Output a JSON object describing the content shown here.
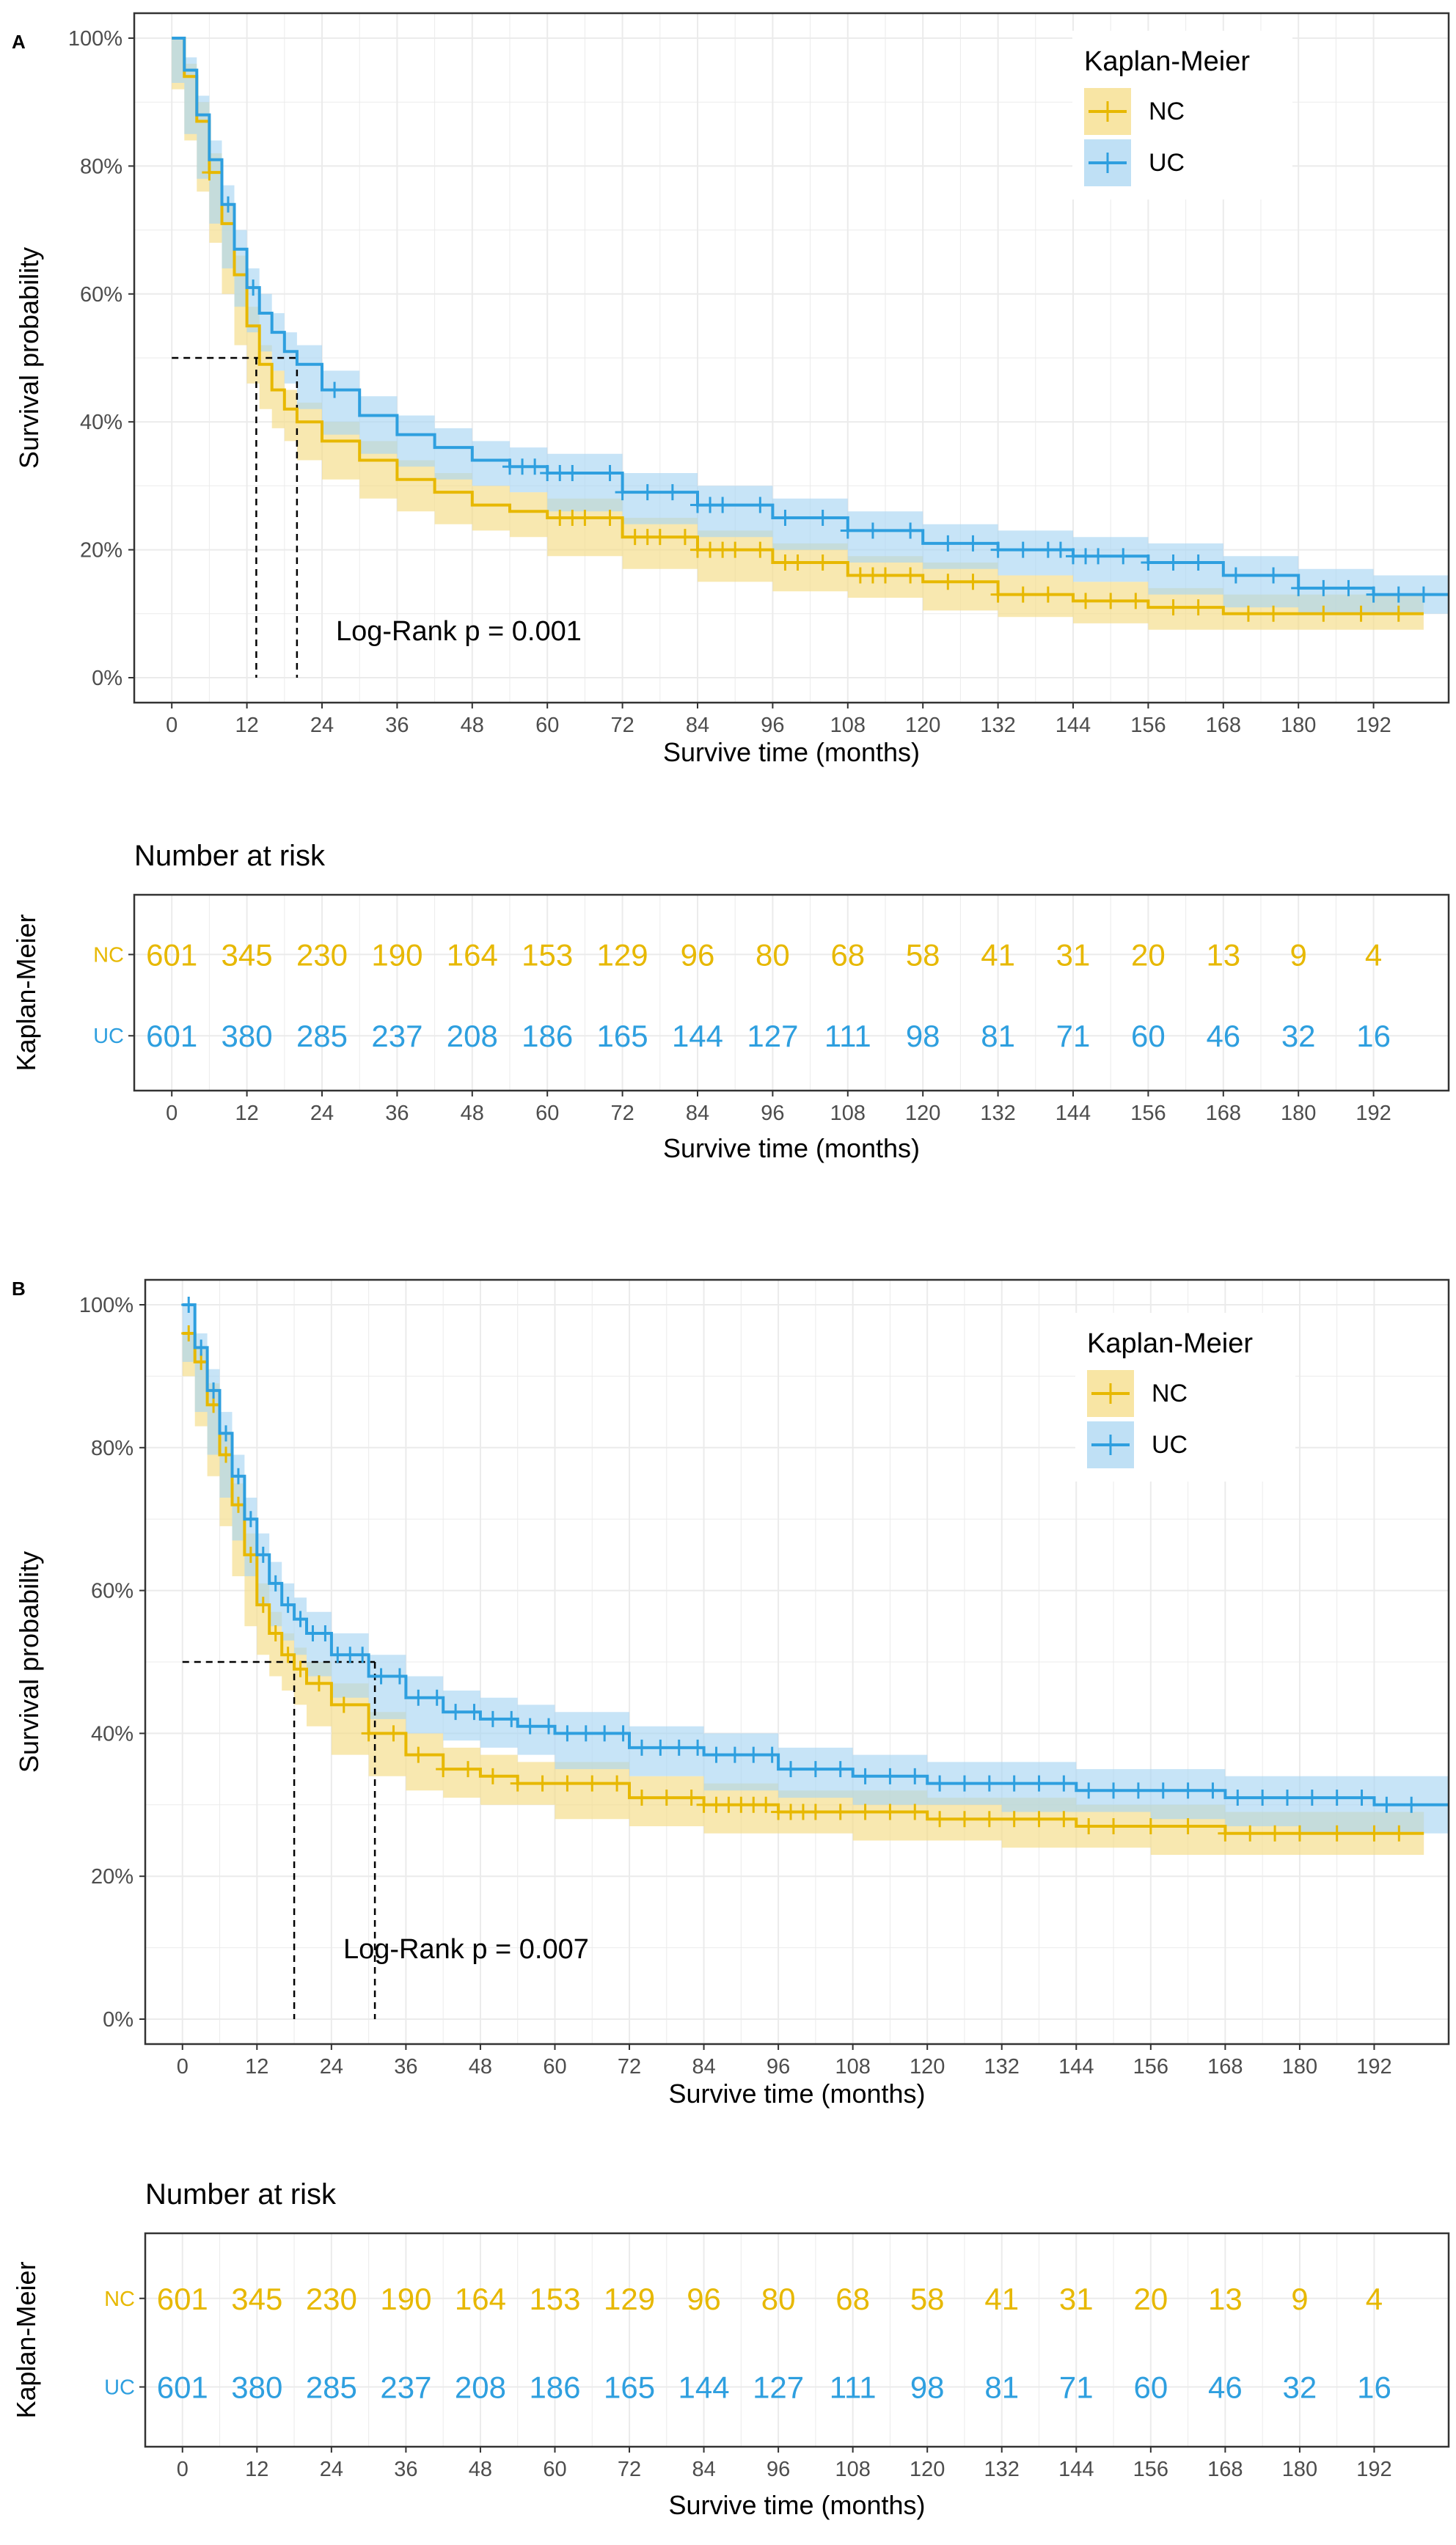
{
  "panels": [
    {
      "label": "A",
      "logrank": "Log-Rank p = 0.001",
      "legend": {
        "title": "Kaplan-Meier",
        "items": [
          "NC",
          "UC"
        ]
      },
      "risk": {
        "title": "Number at risk",
        "ylabel": "Kaplan-Meier",
        "xlabel": "Survive time (months)"
      }
    },
    {
      "label": "B",
      "logrank": "Log-Rank p = 0.007",
      "legend": {
        "title": "Kaplan-Meier",
        "items": [
          "NC",
          "UC"
        ]
      },
      "risk": {
        "title": "Number at risk",
        "ylabel": "Kaplan-Meier",
        "xlabel": "Survive time (months)"
      }
    }
  ],
  "colors": {
    "NC": "#E7B800",
    "UC": "#2E9FDF",
    "NC_band": "#F5DC85",
    "UC_band": "#A9D6F2",
    "grid": "#EBEBEB"
  },
  "chart_data": [
    {
      "type": "line",
      "panel": "A",
      "xlabel": "Survive time (months)",
      "ylabel": "Survival probability",
      "xlim": [
        -6,
        204
      ],
      "ylim": [
        0,
        1
      ],
      "xticks": [
        0,
        12,
        24,
        36,
        48,
        60,
        72,
        84,
        96,
        108,
        120,
        132,
        144,
        156,
        168,
        180,
        192
      ],
      "yticks": [
        0,
        0.2,
        0.4,
        0.6,
        0.8,
        1.0
      ],
      "ytick_labels": [
        "0%",
        "20%",
        "40%",
        "60%",
        "80%",
        "100%"
      ],
      "grid": true,
      "legend_position": "top-right",
      "median_lines": [
        13.5,
        20
      ],
      "series": [
        {
          "name": "NC",
          "x": [
            0,
            2,
            4,
            6,
            8,
            10,
            12,
            14,
            16,
            18,
            20,
            24,
            30,
            36,
            42,
            48,
            54,
            60,
            72,
            84,
            96,
            108,
            120,
            132,
            144,
            156,
            168,
            180,
            192,
            200
          ],
          "y": [
            1.0,
            0.94,
            0.87,
            0.79,
            0.71,
            0.63,
            0.55,
            0.49,
            0.45,
            0.42,
            0.4,
            0.37,
            0.34,
            0.31,
            0.29,
            0.27,
            0.26,
            0.25,
            0.22,
            0.2,
            0.18,
            0.16,
            0.15,
            0.13,
            0.12,
            0.11,
            0.1,
            0.1,
            0.1,
            0.1
          ],
          "lower": [
            1.0,
            0.92,
            0.84,
            0.76,
            0.68,
            0.6,
            0.52,
            0.46,
            0.42,
            0.39,
            0.37,
            0.34,
            0.31,
            0.28,
            0.26,
            0.24,
            0.23,
            0.22,
            0.19,
            0.17,
            0.15,
            0.135,
            0.125,
            0.105,
            0.095,
            0.085,
            0.075,
            0.075,
            0.075,
            0.075
          ],
          "upper": [
            1.0,
            0.96,
            0.9,
            0.82,
            0.74,
            0.66,
            0.58,
            0.52,
            0.48,
            0.45,
            0.43,
            0.4,
            0.37,
            0.34,
            0.32,
            0.3,
            0.29,
            0.28,
            0.25,
            0.23,
            0.21,
            0.19,
            0.18,
            0.16,
            0.15,
            0.14,
            0.13,
            0.13,
            0.13,
            0.13
          ],
          "censor_x": [
            6,
            62,
            64,
            66,
            70,
            74,
            76,
            78,
            82,
            84,
            86,
            88,
            90,
            94,
            98,
            100,
            104,
            110,
            112,
            114,
            118,
            124,
            128,
            132,
            136,
            140,
            146,
            150,
            154,
            160,
            164,
            172,
            176,
            184,
            190,
            196
          ]
        },
        {
          "name": "UC",
          "x": [
            0,
            2,
            4,
            6,
            8,
            10,
            12,
            14,
            16,
            18,
            20,
            24,
            30,
            36,
            42,
            48,
            54,
            60,
            72,
            84,
            96,
            108,
            120,
            132,
            144,
            156,
            168,
            180,
            192,
            204
          ],
          "y": [
            1.0,
            0.95,
            0.88,
            0.81,
            0.74,
            0.67,
            0.61,
            0.57,
            0.54,
            0.51,
            0.49,
            0.45,
            0.41,
            0.38,
            0.36,
            0.34,
            0.33,
            0.32,
            0.29,
            0.27,
            0.25,
            0.23,
            0.21,
            0.2,
            0.19,
            0.18,
            0.16,
            0.14,
            0.13,
            0.13
          ],
          "lower": [
            1.0,
            0.93,
            0.85,
            0.78,
            0.71,
            0.64,
            0.58,
            0.54,
            0.51,
            0.48,
            0.46,
            0.42,
            0.38,
            0.35,
            0.33,
            0.31,
            0.3,
            0.29,
            0.26,
            0.24,
            0.22,
            0.2,
            0.18,
            0.17,
            0.16,
            0.15,
            0.13,
            0.11,
            0.1,
            0.1
          ],
          "upper": [
            1.0,
            0.97,
            0.91,
            0.84,
            0.77,
            0.7,
            0.64,
            0.6,
            0.57,
            0.54,
            0.52,
            0.48,
            0.44,
            0.41,
            0.39,
            0.37,
            0.36,
            0.35,
            0.32,
            0.3,
            0.28,
            0.26,
            0.24,
            0.23,
            0.22,
            0.21,
            0.19,
            0.17,
            0.16,
            0.16
          ],
          "censor_x": [
            9,
            13,
            26,
            54,
            56,
            58,
            60,
            62,
            64,
            70,
            72,
            76,
            80,
            84,
            86,
            88,
            94,
            98,
            104,
            108,
            112,
            118,
            124,
            128,
            132,
            136,
            140,
            142,
            144,
            146,
            148,
            152,
            156,
            160,
            164,
            170,
            176,
            180,
            184,
            188,
            192,
            196,
            200
          ]
        }
      ]
    },
    {
      "type": "table",
      "panel": "A",
      "title": "Number at risk",
      "xlabel": "Survive time (months)",
      "ylabel": "Kaplan-Meier",
      "x": [
        0,
        12,
        24,
        36,
        48,
        60,
        72,
        84,
        96,
        108,
        120,
        132,
        144,
        156,
        168,
        180,
        192
      ],
      "rows": [
        {
          "name": "NC",
          "values": [
            601,
            345,
            230,
            190,
            164,
            153,
            129,
            96,
            80,
            68,
            58,
            41,
            31,
            20,
            13,
            9,
            4
          ]
        },
        {
          "name": "UC",
          "values": [
            601,
            380,
            285,
            237,
            208,
            186,
            165,
            144,
            127,
            111,
            98,
            81,
            71,
            60,
            46,
            32,
            16
          ]
        }
      ]
    },
    {
      "type": "line",
      "panel": "B",
      "xlabel": "Survive time (months)",
      "ylabel": "Survival probability",
      "xlim": [
        -6,
        204
      ],
      "ylim": [
        0,
        1
      ],
      "xticks": [
        0,
        12,
        24,
        36,
        48,
        60,
        72,
        84,
        96,
        108,
        120,
        132,
        144,
        156,
        168,
        180,
        192
      ],
      "yticks": [
        0,
        0.2,
        0.4,
        0.6,
        0.8,
        1.0
      ],
      "ytick_labels": [
        "0%",
        "20%",
        "40%",
        "60%",
        "80%",
        "100%"
      ],
      "grid": true,
      "legend_position": "top-right",
      "median_lines": [
        18,
        31
      ],
      "series": [
        {
          "name": "NC",
          "x": [
            0,
            2,
            4,
            6,
            8,
            10,
            12,
            14,
            16,
            18,
            20,
            24,
            30,
            36,
            42,
            48,
            54,
            60,
            72,
            84,
            96,
            108,
            120,
            132,
            144,
            156,
            168,
            180,
            192,
            200
          ],
          "y": [
            0.96,
            0.92,
            0.86,
            0.79,
            0.72,
            0.65,
            0.58,
            0.54,
            0.51,
            0.49,
            0.47,
            0.44,
            0.4,
            0.37,
            0.35,
            0.34,
            0.33,
            0.33,
            0.31,
            0.3,
            0.29,
            0.29,
            0.28,
            0.28,
            0.27,
            0.27,
            0.26,
            0.26,
            0.26,
            0.26
          ],
          "lower": [
            0.96,
            0.9,
            0.83,
            0.76,
            0.69,
            0.62,
            0.55,
            0.51,
            0.48,
            0.46,
            0.44,
            0.41,
            0.37,
            0.34,
            0.32,
            0.31,
            0.3,
            0.3,
            0.28,
            0.27,
            0.26,
            0.26,
            0.25,
            0.25,
            0.24,
            0.24,
            0.23,
            0.23,
            0.23,
            0.23
          ],
          "upper": [
            0.96,
            0.94,
            0.89,
            0.82,
            0.75,
            0.68,
            0.61,
            0.57,
            0.54,
            0.52,
            0.5,
            0.47,
            0.43,
            0.4,
            0.38,
            0.37,
            0.36,
            0.36,
            0.34,
            0.33,
            0.32,
            0.32,
            0.31,
            0.31,
            0.3,
            0.3,
            0.29,
            0.29,
            0.29,
            0.29
          ],
          "censor_x": [
            1,
            3,
            5,
            7,
            9,
            11,
            13,
            15,
            17,
            19,
            22,
            26,
            30,
            34,
            38,
            42,
            46,
            50,
            54,
            58,
            62,
            66,
            70,
            74,
            78,
            82,
            84,
            86,
            88,
            90,
            92,
            94,
            96,
            98,
            100,
            102,
            106,
            110,
            114,
            118,
            122,
            126,
            130,
            134,
            138,
            142,
            146,
            150,
            156,
            162,
            168,
            172,
            176,
            180,
            186,
            192,
            196
          ]
        },
        {
          "name": "UC",
          "x": [
            0,
            2,
            4,
            6,
            8,
            10,
            12,
            14,
            16,
            18,
            20,
            24,
            30,
            36,
            42,
            48,
            54,
            60,
            72,
            84,
            96,
            108,
            120,
            132,
            144,
            156,
            168,
            180,
            192,
            204
          ],
          "y": [
            1.0,
            0.94,
            0.88,
            0.82,
            0.76,
            0.7,
            0.65,
            0.61,
            0.58,
            0.56,
            0.54,
            0.51,
            0.48,
            0.45,
            0.43,
            0.42,
            0.41,
            0.4,
            0.38,
            0.37,
            0.35,
            0.34,
            0.33,
            0.33,
            0.32,
            0.32,
            0.31,
            0.31,
            0.3,
            0.3
          ],
          "lower": [
            1.0,
            0.92,
            0.85,
            0.79,
            0.73,
            0.67,
            0.62,
            0.58,
            0.55,
            0.53,
            0.51,
            0.48,
            0.45,
            0.42,
            0.4,
            0.39,
            0.38,
            0.37,
            0.35,
            0.34,
            0.32,
            0.31,
            0.3,
            0.3,
            0.29,
            0.29,
            0.28,
            0.27,
            0.26,
            0.26
          ],
          "upper": [
            1.0,
            0.96,
            0.91,
            0.85,
            0.79,
            0.73,
            0.68,
            0.64,
            0.61,
            0.59,
            0.57,
            0.54,
            0.51,
            0.48,
            0.46,
            0.45,
            0.44,
            0.43,
            0.41,
            0.4,
            0.38,
            0.37,
            0.36,
            0.36,
            0.35,
            0.35,
            0.34,
            0.34,
            0.34,
            0.34
          ],
          "censor_x": [
            1,
            3,
            5,
            7,
            9,
            11,
            13,
            15,
            17,
            19,
            21,
            23,
            25,
            27,
            29,
            32,
            35,
            38,
            41,
            44,
            47,
            50,
            53,
            56,
            59,
            62,
            65,
            68,
            71,
            74,
            77,
            80,
            83,
            86,
            89,
            92,
            95,
            98,
            102,
            106,
            110,
            114,
            118,
            122,
            126,
            130,
            134,
            138,
            142,
            146,
            150,
            154,
            158,
            162,
            166,
            170,
            174,
            178,
            182,
            186,
            190,
            194,
            198
          ]
        }
      ]
    },
    {
      "type": "table",
      "panel": "B",
      "title": "Number at risk",
      "xlabel": "Survive time (months)",
      "ylabel": "Kaplan-Meier",
      "x": [
        0,
        12,
        24,
        36,
        48,
        60,
        72,
        84,
        96,
        108,
        120,
        132,
        144,
        156,
        168,
        180,
        192
      ],
      "rows": [
        {
          "name": "NC",
          "values": [
            601,
            345,
            230,
            190,
            164,
            153,
            129,
            96,
            80,
            68,
            58,
            41,
            31,
            20,
            13,
            9,
            4
          ]
        },
        {
          "name": "UC",
          "values": [
            601,
            380,
            285,
            237,
            208,
            186,
            165,
            144,
            127,
            111,
            98,
            81,
            71,
            60,
            46,
            32,
            16
          ]
        }
      ]
    }
  ]
}
